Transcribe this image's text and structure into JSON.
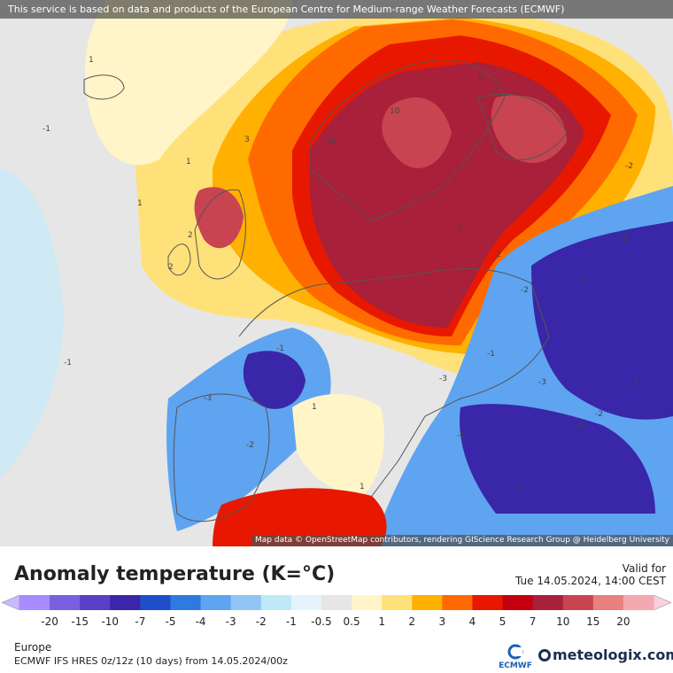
{
  "header": {
    "source_notice": "This service is based on data and products of the European Centre for Medium-range Weather Forecasts (ECMWF)"
  },
  "map": {
    "attribution": "Map data © OpenStreetMap contributors, rendering GIScience Research Group @ Heidelberg University",
    "contour_labels": [
      {
        "text": "1"
      },
      {
        "text": "1"
      },
      {
        "text": "-1"
      },
      {
        "text": "1"
      },
      {
        "text": "-1"
      },
      {
        "text": "3"
      },
      {
        "text": "10"
      },
      {
        "text": "10"
      },
      {
        "text": "5"
      },
      {
        "text": "-2"
      },
      {
        "text": "2"
      },
      {
        "text": "-2"
      },
      {
        "text": "-3"
      },
      {
        "text": "-5"
      },
      {
        "text": "-3"
      },
      {
        "text": "-3"
      },
      {
        "text": "-2"
      },
      {
        "text": "-1"
      },
      {
        "text": "1"
      },
      {
        "text": "-3"
      },
      {
        "text": "-2"
      },
      {
        "text": "-5"
      },
      {
        "text": "2"
      },
      {
        "text": "1"
      },
      {
        "text": "2"
      },
      {
        "text": "-1"
      },
      {
        "text": "3"
      },
      {
        "text": "1"
      },
      {
        "text": "-1"
      },
      {
        "text": "-3"
      }
    ]
  },
  "footer": {
    "title": "Anomaly temperature (K=°C)",
    "valid_label": "Valid for",
    "valid_time": "Tue 14.05.2024, 14:00 CEST",
    "region": "Europe",
    "model_info": "ECMWF IFS HRES 0z/12z (10 days) from  14.05.2024/00z",
    "ecmwf_label": "ECMWF",
    "brand": "meteologix.com"
  },
  "legend": {
    "ticks": [
      "-20",
      "-15",
      "-10",
      "-7",
      "-5",
      "-4",
      "-3",
      "-2",
      "-1",
      "-0.5",
      "0.5",
      "1",
      "2",
      "3",
      "4",
      "5",
      "7",
      "10",
      "15",
      "20"
    ],
    "colors": [
      "#a68cff",
      "#7a5fe0",
      "#5a3fc8",
      "#3a26a8",
      "#1f4fc8",
      "#2e7ae0",
      "#5ea4f0",
      "#8fc6f5",
      "#bfe8f8",
      "#e4f4fa",
      "#e6e6e6",
      "#fff5c8",
      "#ffe17a",
      "#ffb000",
      "#ff6a00",
      "#e81800",
      "#c40010",
      "#a8203a",
      "#c84450",
      "#e88080",
      "#f4a8b0"
    ],
    "low_end_color": "#c8b8ff",
    "high_end_color": "#f8d0e0"
  }
}
